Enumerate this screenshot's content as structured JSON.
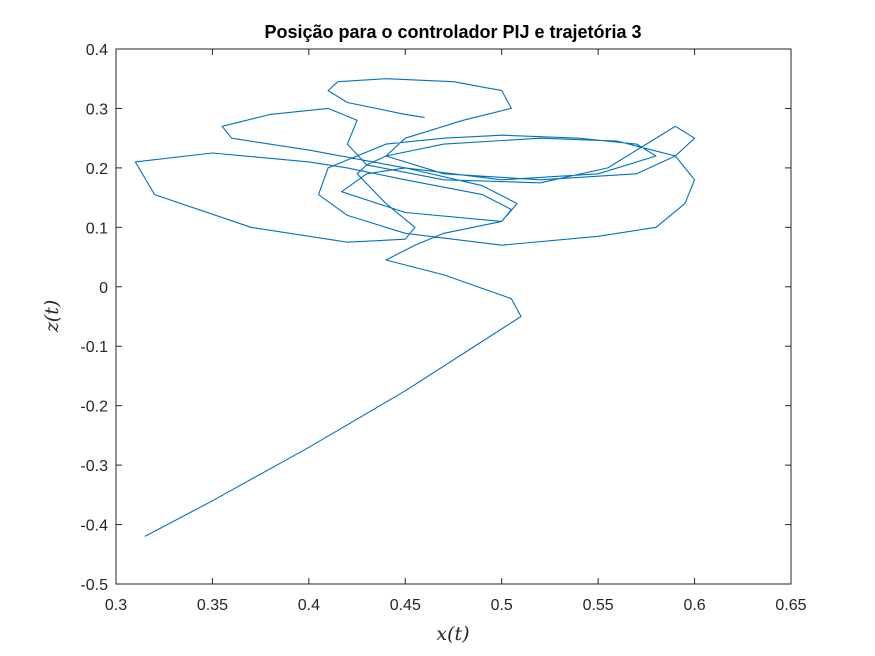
{
  "chart_data": {
    "type": "line",
    "title": "Posição para o controlador PIJ e trajetória 3",
    "xlabel": "x(t)",
    "ylabel": "z(t)",
    "xlim": [
      0.3,
      0.65
    ],
    "ylim": [
      -0.5,
      0.4
    ],
    "xticks": [
      0.3,
      0.35,
      0.4,
      0.45,
      0.5,
      0.55,
      0.6,
      0.65
    ],
    "xtick_labels": [
      "0.3",
      "0.35",
      "0.4",
      "0.45",
      "0.5",
      "0.55",
      "0.6",
      "0.65"
    ],
    "yticks": [
      -0.5,
      -0.4,
      -0.3,
      -0.2,
      -0.1,
      0,
      0.1,
      0.2,
      0.3,
      0.4
    ],
    "ytick_labels": [
      "-0.5",
      "-0.4",
      "-0.3",
      "-0.2",
      "-0.1",
      "0",
      "0.1",
      "0.2",
      "0.3",
      "0.4"
    ],
    "grid": false,
    "legend": "none",
    "line_color": "#0072BD",
    "x": [
      0.315,
      0.35,
      0.4,
      0.45,
      0.51,
      0.505,
      0.47,
      0.44,
      0.455,
      0.47,
      0.5,
      0.508,
      0.49,
      0.45,
      0.43,
      0.417,
      0.45,
      0.5,
      0.505,
      0.49,
      0.45,
      0.42,
      0.4,
      0.35,
      0.31,
      0.32,
      0.37,
      0.42,
      0.45,
      0.455,
      0.44,
      0.425,
      0.43,
      0.44,
      0.47,
      0.52,
      0.56,
      0.59,
      0.6,
      0.595,
      0.58,
      0.55,
      0.5,
      0.45,
      0.42,
      0.405,
      0.41,
      0.44,
      0.47,
      0.5,
      0.54,
      0.57,
      0.58,
      0.55,
      0.5,
      0.45,
      0.4,
      0.36,
      0.355,
      0.38,
      0.41,
      0.425,
      0.42,
      0.43,
      0.47,
      0.52,
      0.555,
      0.575,
      0.59,
      0.6,
      0.59,
      0.57,
      0.52,
      0.47,
      0.44,
      0.45,
      0.48,
      0.505,
      0.5,
      0.475,
      0.44,
      0.415,
      0.41,
      0.42,
      0.45,
      0.46
    ],
    "y": [
      -0.42,
      -0.36,
      -0.27,
      -0.175,
      -0.05,
      -0.02,
      0.02,
      0.045,
      0.07,
      0.09,
      0.11,
      0.14,
      0.17,
      0.2,
      0.19,
      0.16,
      0.125,
      0.11,
      0.13,
      0.155,
      0.18,
      0.2,
      0.21,
      0.225,
      0.21,
      0.155,
      0.1,
      0.075,
      0.08,
      0.1,
      0.14,
      0.19,
      0.205,
      0.22,
      0.24,
      0.25,
      0.245,
      0.22,
      0.18,
      0.14,
      0.1,
      0.085,
      0.07,
      0.09,
      0.12,
      0.155,
      0.2,
      0.24,
      0.25,
      0.255,
      0.25,
      0.24,
      0.22,
      0.19,
      0.18,
      0.2,
      0.23,
      0.25,
      0.27,
      0.29,
      0.3,
      0.28,
      0.24,
      0.205,
      0.18,
      0.175,
      0.2,
      0.24,
      0.27,
      0.25,
      0.22,
      0.19,
      0.18,
      0.19,
      0.22,
      0.25,
      0.28,
      0.3,
      0.33,
      0.345,
      0.35,
      0.345,
      0.33,
      0.31,
      0.29,
      0.285
    ]
  }
}
